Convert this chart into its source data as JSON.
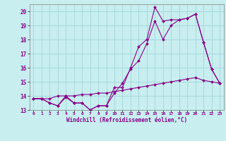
{
  "xlabel": "Windchill (Refroidissement éolien,°C)",
  "bg_color": "#c8eef0",
  "grid_color": "#a8d8dc",
  "line_color": "#880088",
  "xlim": [
    -0.5,
    23.5
  ],
  "ylim": [
    13,
    20.5
  ],
  "xticks": [
    0,
    1,
    2,
    3,
    4,
    5,
    6,
    7,
    8,
    9,
    10,
    11,
    12,
    13,
    14,
    15,
    16,
    17,
    18,
    19,
    20,
    21,
    22,
    23
  ],
  "yticks": [
    13,
    14,
    15,
    16,
    17,
    18,
    19,
    20
  ],
  "series": [
    {
      "x": [
        0,
        1,
        2,
        3,
        4,
        5,
        6,
        7,
        8,
        9,
        10,
        11,
        12,
        13,
        14,
        15,
        16,
        17,
        18,
        19,
        20,
        21,
        22,
        23
      ],
      "y": [
        13.8,
        13.8,
        13.5,
        13.3,
        13.9,
        13.5,
        13.5,
        13.0,
        13.3,
        13.3,
        14.6,
        14.6,
        16.0,
        17.5,
        18.0,
        20.3,
        19.3,
        19.4,
        19.4,
        19.5,
        19.8,
        17.8,
        15.9,
        14.9
      ]
    },
    {
      "x": [
        0,
        1,
        2,
        3,
        4,
        5,
        6,
        7,
        8,
        9,
        10,
        11,
        12,
        13,
        14,
        15,
        16,
        17,
        18,
        19,
        20,
        21,
        22,
        23
      ],
      "y": [
        13.8,
        13.8,
        13.5,
        13.3,
        14.0,
        13.5,
        13.5,
        13.0,
        13.3,
        13.3,
        14.2,
        14.9,
        15.9,
        16.5,
        17.7,
        19.3,
        18.0,
        19.0,
        19.4,
        19.5,
        19.8,
        17.8,
        15.9,
        14.9
      ]
    },
    {
      "x": [
        0,
        1,
        2,
        3,
        4,
        5,
        6,
        7,
        8,
        9,
        10,
        11,
        12,
        13,
        14,
        15,
        16,
        17,
        18,
        19,
        20,
        21,
        22,
        23
      ],
      "y": [
        13.8,
        13.8,
        13.8,
        14.0,
        14.0,
        14.0,
        14.1,
        14.1,
        14.2,
        14.2,
        14.3,
        14.4,
        14.5,
        14.6,
        14.7,
        14.8,
        14.9,
        15.0,
        15.1,
        15.2,
        15.3,
        15.1,
        15.0,
        14.9
      ]
    }
  ]
}
